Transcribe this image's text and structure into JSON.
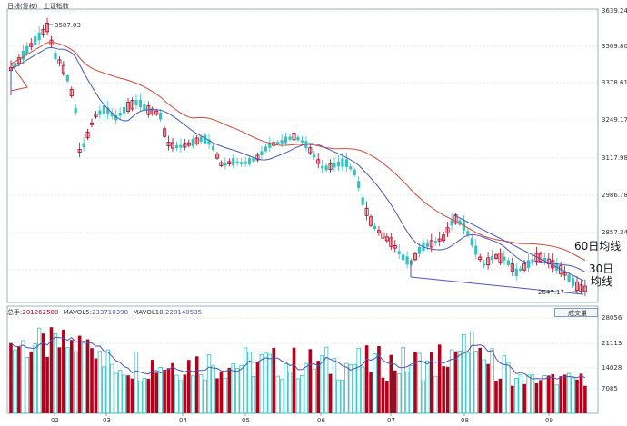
{
  "header": {
    "period": "日线(复权)",
    "index_name": "上证指数"
  },
  "price_axis": {
    "ticks": [
      "3639.24",
      "3509.80",
      "3378.61",
      "3249.17",
      "3117.98",
      "2986.78",
      "2857.34"
    ],
    "min_tick": "2857.34"
  },
  "annotations": {
    "high_label": "3587.03",
    "low_label": "2647.17",
    "ma60_label": "60日均线",
    "ma30_label_1": "30日",
    "ma30_label_2": "均线"
  },
  "volume_panel": {
    "header_prefix": "总手:",
    "total_volume": "201262500",
    "mavol5_label": "MAVOL5:",
    "mavol5_value": "233710398",
    "mavol10_label": "MAVOL10:",
    "mavol10_value": "228140535",
    "dropdown_label": "成交量",
    "axis_ticks": [
      "28056",
      "21113",
      "14028",
      "7085"
    ]
  },
  "x_axis": {
    "months": [
      "02",
      "03",
      "04",
      "05",
      "06",
      "07",
      "08",
      "09"
    ]
  },
  "colors": {
    "up": "#b5001c",
    "down": "#33c2c2",
    "ma30": "#4a56b8",
    "ma60": "#cf4a3a",
    "grid": "#c6d6da"
  },
  "chart_data": {
    "type": "candlestick",
    "price_range": [
      2620,
      3650
    ],
    "volume_range": [
      0,
      28056
    ],
    "months": [
      "02",
      "03",
      "04",
      "05",
      "06",
      "07",
      "08",
      "09"
    ],
    "highlights": {
      "high": 3587.03,
      "low": 2647.17
    }
  }
}
